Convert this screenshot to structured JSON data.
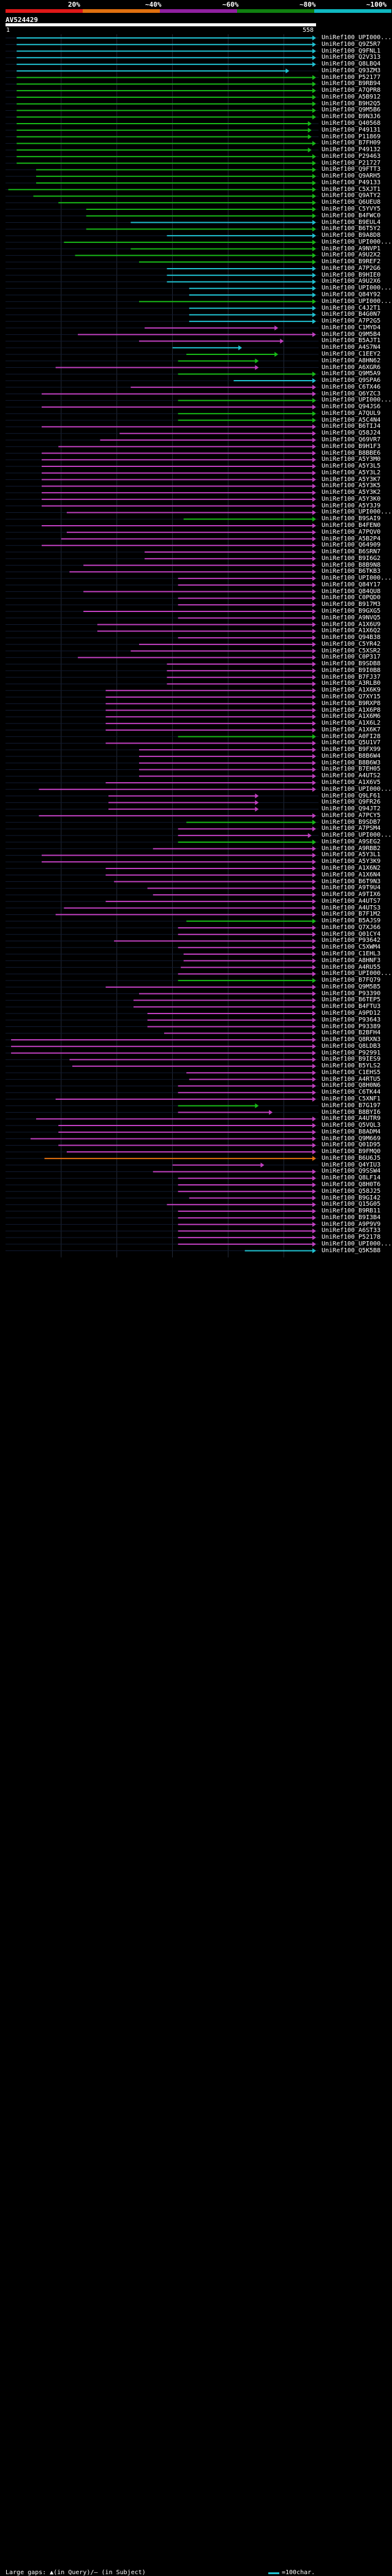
{
  "scale": {
    "labels": [
      {
        "text": "20%",
        "at": 0.2
      },
      {
        "text": "~40%",
        "at": 0.4
      },
      {
        "text": "~60%",
        "at": 0.6
      },
      {
        "text": "~80%",
        "at": 0.8
      },
      {
        "text": "~100%",
        "at": 1.0
      }
    ],
    "bands": [
      {
        "color": "#e01818"
      },
      {
        "color": "#e07010"
      },
      {
        "color": "#9020a0"
      },
      {
        "color": "#108010"
      },
      {
        "color": "#10b8c0"
      }
    ]
  },
  "query": {
    "name": "AV524429",
    "start": "1",
    "end": "558",
    "length": 558
  },
  "colors": {
    "cyan": "#20c0d0",
    "green": "#18b818",
    "magenta": "#c040c0",
    "orange": "#e07010",
    "dim": "#405070"
  },
  "hits": [
    {
      "label": "UniRef100_UPI000...",
      "s": 20,
      "e": 558,
      "c": "cyan"
    },
    {
      "label": "UniRef100_Q9Z5R7",
      "s": 20,
      "e": 558,
      "c": "cyan"
    },
    {
      "label": "UniRef100_Q9FNL1",
      "s": 20,
      "e": 558,
      "c": "cyan"
    },
    {
      "label": "UniRef100_Q2V313",
      "s": 20,
      "e": 558,
      "c": "cyan"
    },
    {
      "label": "UniRef100_Q8LBQ4",
      "s": 20,
      "e": 558,
      "c": "cyan"
    },
    {
      "label": "UniRef100_Q93ZM3",
      "s": 20,
      "e": 510,
      "c": "cyan"
    },
    {
      "label": "UniRef100_P52177",
      "s": 20,
      "e": 558,
      "c": "green"
    },
    {
      "label": "UniRef100_B9RB94",
      "s": 20,
      "e": 558,
      "c": "green"
    },
    {
      "label": "UniRef100_A7QPR8",
      "s": 20,
      "e": 558,
      "c": "green"
    },
    {
      "label": "UniRef100_A5B912",
      "s": 20,
      "e": 558,
      "c": "green"
    },
    {
      "label": "UniRef100_B9H2Q5",
      "s": 20,
      "e": 558,
      "c": "green"
    },
    {
      "label": "UniRef100_Q9M5B6",
      "s": 20,
      "e": 558,
      "c": "green"
    },
    {
      "label": "UniRef100_B9N3J6",
      "s": 20,
      "e": 558,
      "c": "green"
    },
    {
      "label": "UniRef100_Q40568",
      "s": 20,
      "e": 550,
      "c": "green"
    },
    {
      "label": "UniRef100_P49131",
      "s": 20,
      "e": 550,
      "c": "green"
    },
    {
      "label": "UniRef100_P11869",
      "s": 20,
      "e": 550,
      "c": "green"
    },
    {
      "label": "UniRef100_B7FH09",
      "s": 20,
      "e": 558,
      "c": "green"
    },
    {
      "label": "UniRef100_P49132",
      "s": 20,
      "e": 550,
      "c": "green"
    },
    {
      "label": "UniRef100_P29463",
      "s": 20,
      "e": 558,
      "c": "green"
    },
    {
      "label": "UniRef100_P21727",
      "s": 20,
      "e": 558,
      "c": "green"
    },
    {
      "label": "UniRef100_Q9FTT3",
      "s": 55,
      "e": 558,
      "c": "green"
    },
    {
      "label": "UniRef100_Q9ARH5",
      "s": 55,
      "e": 558,
      "c": "green"
    },
    {
      "label": "UniRef100_P49133",
      "s": 55,
      "e": 558,
      "c": "green"
    },
    {
      "label": "UniRef100_C5XJT1",
      "s": 5,
      "e": 558,
      "c": "green"
    },
    {
      "label": "UniRef100_Q9ATY2",
      "s": 50,
      "e": 558,
      "c": "green"
    },
    {
      "label": "UniRef100_Q6UEU8",
      "s": 95,
      "e": 558,
      "c": "green"
    },
    {
      "label": "UniRef100_C5YVY5",
      "s": 145,
      "e": 558,
      "c": "green"
    },
    {
      "label": "UniRef100_B4FWC0",
      "s": 145,
      "e": 558,
      "c": "green"
    },
    {
      "label": "UniRef100_B9EUL4",
      "s": 225,
      "e": 558,
      "c": "cyan"
    },
    {
      "label": "UniRef100_B6T5Y2",
      "s": 145,
      "e": 558,
      "c": "green"
    },
    {
      "label": "UniRef100_B9A8D8",
      "s": 290,
      "e": 558,
      "c": "cyan"
    },
    {
      "label": "UniRef100_UPI000...",
      "s": 105,
      "e": 558,
      "c": "green"
    },
    {
      "label": "UniRef100_A9NVP1",
      "s": 225,
      "e": 558,
      "c": "green"
    },
    {
      "label": "UniRef100_A9U2X2",
      "s": 125,
      "e": 558,
      "c": "green"
    },
    {
      "label": "UniRef100_B9REF2",
      "s": 240,
      "e": 558,
      "c": "green"
    },
    {
      "label": "UniRef100_A7P2G6",
      "s": 290,
      "e": 558,
      "c": "cyan"
    },
    {
      "label": "UniRef100_B9HIE0",
      "s": 290,
      "e": 558,
      "c": "cyan"
    },
    {
      "label": "UniRef100_A9U2X6",
      "s": 290,
      "e": 558,
      "c": "cyan"
    },
    {
      "label": "UniRef100_UPI000...",
      "s": 330,
      "e": 558,
      "c": "cyan"
    },
    {
      "label": "UniRef100_Q84Y92",
      "s": 330,
      "e": 558,
      "c": "cyan"
    },
    {
      "label": "UniRef100_UPI000...",
      "s": 240,
      "e": 558,
      "c": "green"
    },
    {
      "label": "UniRef100_C4J2T1",
      "s": 330,
      "e": 558,
      "c": "cyan"
    },
    {
      "label": "UniRef100_B4G0N7",
      "s": 330,
      "e": 558,
      "c": "cyan"
    },
    {
      "label": "UniRef100_A7P2G5",
      "s": 330,
      "e": 558,
      "c": "cyan"
    },
    {
      "label": "UniRef100_C1MYD4",
      "s": 250,
      "e": 490,
      "c": "magenta"
    },
    {
      "label": "UniRef100_Q9M5B4",
      "s": 130,
      "e": 558,
      "c": "magenta"
    },
    {
      "label": "UniRef100_B5AJT1",
      "s": 240,
      "e": 500,
      "c": "magenta"
    },
    {
      "label": "UniRef100_A4S7N4",
      "s": 300,
      "e": 425,
      "c": "cyan"
    },
    {
      "label": "UniRef100_C1EEY2",
      "s": 325,
      "e": 490,
      "c": "green"
    },
    {
      "label": "UniRef100_A8HN62",
      "s": 310,
      "e": 455,
      "c": "green"
    },
    {
      "label": "UniRef100_A6XGR6",
      "s": 90,
      "e": 455,
      "c": "magenta"
    },
    {
      "label": "UniRef100_Q9M5A9",
      "s": 310,
      "e": 558,
      "c": "green"
    },
    {
      "label": "UniRef100_Q9SPA6",
      "s": 410,
      "e": 558,
      "c": "cyan"
    },
    {
      "label": "UniRef100_C6TX46",
      "s": 225,
      "e": 558,
      "c": "magenta"
    },
    {
      "label": "UniRef100_Q6YZC3",
      "s": 65,
      "e": 558,
      "c": "magenta"
    },
    {
      "label": "UniRef100_UPI000...",
      "s": 310,
      "e": 558,
      "c": "green"
    },
    {
      "label": "UniRef100_Q94JS6",
      "s": 65,
      "e": 558,
      "c": "magenta"
    },
    {
      "label": "UniRef100_A7QUL9",
      "s": 310,
      "e": 558,
      "c": "green"
    },
    {
      "label": "UniRef100_A5C4N4",
      "s": 310,
      "e": 558,
      "c": "green"
    },
    {
      "label": "UniRef100_B6TIJ4",
      "s": 65,
      "e": 558,
      "c": "magenta"
    },
    {
      "label": "UniRef100_Q58J24",
      "s": 205,
      "e": 558,
      "c": "magenta"
    },
    {
      "label": "UniRef100_Q69VR7",
      "s": 170,
      "e": 558,
      "c": "magenta"
    },
    {
      "label": "UniRef100_B9H1F3",
      "s": 95,
      "e": 558,
      "c": "magenta"
    },
    {
      "label": "UniRef100_B8BBE6",
      "s": 65,
      "e": 558,
      "c": "magenta"
    },
    {
      "label": "UniRef100_A5Y3M0",
      "s": 65,
      "e": 558,
      "c": "magenta"
    },
    {
      "label": "UniRef100_A5Y3L5",
      "s": 65,
      "e": 558,
      "c": "magenta"
    },
    {
      "label": "UniRef100_A5Y3L2",
      "s": 65,
      "e": 558,
      "c": "magenta"
    },
    {
      "label": "UniRef100_A5Y3K7",
      "s": 65,
      "e": 558,
      "c": "magenta"
    },
    {
      "label": "UniRef100_A5Y3K5",
      "s": 65,
      "e": 558,
      "c": "magenta"
    },
    {
      "label": "UniRef100_A5Y3K2",
      "s": 65,
      "e": 558,
      "c": "magenta"
    },
    {
      "label": "UniRef100_A5Y3K0",
      "s": 65,
      "e": 558,
      "c": "magenta"
    },
    {
      "label": "UniRef100_A5Y3J9",
      "s": 65,
      "e": 558,
      "c": "magenta"
    },
    {
      "label": "UniRef100_UPI000...",
      "s": 110,
      "e": 558,
      "c": "magenta"
    },
    {
      "label": "UniRef100_B9SAI9",
      "s": 320,
      "e": 558,
      "c": "green"
    },
    {
      "label": "UniRef100_B4FEN0",
      "s": 65,
      "e": 558,
      "c": "magenta"
    },
    {
      "label": "UniRef100_A7PQV0",
      "s": 110,
      "e": 558,
      "c": "magenta"
    },
    {
      "label": "UniRef100_A5B2P4",
      "s": 100,
      "e": 558,
      "c": "magenta"
    },
    {
      "label": "UniRef100_Q64909",
      "s": 65,
      "e": 558,
      "c": "magenta"
    },
    {
      "label": "UniRef100_B6SRN7",
      "s": 250,
      "e": 558,
      "c": "magenta"
    },
    {
      "label": "UniRef100_B9I6G2",
      "s": 250,
      "e": 558,
      "c": "magenta"
    },
    {
      "label": "UniRef100_B8B9N8",
      "s": 140,
      "e": 558,
      "c": "magenta"
    },
    {
      "label": "UniRef100_B6TKB3",
      "s": 115,
      "e": 558,
      "c": "magenta"
    },
    {
      "label": "UniRef100_UPI000...",
      "s": 310,
      "e": 558,
      "c": "magenta"
    },
    {
      "label": "UniRef100_Q84Y17",
      "s": 310,
      "e": 558,
      "c": "magenta"
    },
    {
      "label": "UniRef100_Q84QU8",
      "s": 140,
      "e": 558,
      "c": "magenta"
    },
    {
      "label": "UniRef100_C0PQD0",
      "s": 310,
      "e": 558,
      "c": "magenta"
    },
    {
      "label": "UniRef100_B917M3",
      "s": 310,
      "e": 558,
      "c": "magenta"
    },
    {
      "label": "UniRef100_B9GXG5",
      "s": 140,
      "e": 558,
      "c": "magenta"
    },
    {
      "label": "UniRef100_A9NVQ5",
      "s": 310,
      "e": 558,
      "c": "magenta"
    },
    {
      "label": "UniRef100_A1X6U9",
      "s": 165,
      "e": 558,
      "c": "magenta"
    },
    {
      "label": "UniRef100_A1X6Q2",
      "s": 165,
      "e": 558,
      "c": "magenta"
    },
    {
      "label": "UniRef100_Q94B38",
      "s": 310,
      "e": 558,
      "c": "magenta"
    },
    {
      "label": "UniRef100_C5YR42",
      "s": 240,
      "e": 558,
      "c": "magenta"
    },
    {
      "label": "UniRef100_C5XSR2",
      "s": 225,
      "e": 558,
      "c": "magenta"
    },
    {
      "label": "UniRef100_C0P317",
      "s": 130,
      "e": 558,
      "c": "magenta"
    },
    {
      "label": "UniRef100_B9SDB8",
      "s": 290,
      "e": 558,
      "c": "magenta"
    },
    {
      "label": "UniRef100_B9I0B8",
      "s": 290,
      "e": 558,
      "c": "magenta"
    },
    {
      "label": "UniRef100_B7FJ37",
      "s": 290,
      "e": 558,
      "c": "magenta"
    },
    {
      "label": "UniRef100_A3RLB0",
      "s": 290,
      "e": 558,
      "c": "magenta"
    },
    {
      "label": "UniRef100_A1X6K9",
      "s": 180,
      "e": 558,
      "c": "magenta"
    },
    {
      "label": "UniRef100_Q7XY15",
      "s": 180,
      "e": 558,
      "c": "magenta"
    },
    {
      "label": "UniRef100_B9RXP8",
      "s": 180,
      "e": 558,
      "c": "magenta"
    },
    {
      "label": "UniRef100_A1X6P8",
      "s": 180,
      "e": 558,
      "c": "magenta"
    },
    {
      "label": "UniRef100_A1X6M6",
      "s": 180,
      "e": 558,
      "c": "magenta"
    },
    {
      "label": "UniRef100_A1X6L2",
      "s": 180,
      "e": 558,
      "c": "magenta"
    },
    {
      "label": "UniRef100_A1X6K7",
      "s": 180,
      "e": 558,
      "c": "magenta"
    },
    {
      "label": "UniRef100_A0FI28",
      "s": 310,
      "e": 558,
      "c": "green"
    },
    {
      "label": "UniRef100_Q5U1V7",
      "s": 180,
      "e": 558,
      "c": "magenta"
    },
    {
      "label": "UniRef100_B9FX99",
      "s": 240,
      "e": 558,
      "c": "magenta"
    },
    {
      "label": "UniRef100_B8B6W4",
      "s": 240,
      "e": 558,
      "c": "magenta"
    },
    {
      "label": "UniRef100_B8B6W3",
      "s": 240,
      "e": 558,
      "c": "magenta"
    },
    {
      "label": "UniRef100_B7EH05",
      "s": 240,
      "e": 558,
      "c": "magenta"
    },
    {
      "label": "UniRef100_A4UTS2",
      "s": 240,
      "e": 558,
      "c": "magenta"
    },
    {
      "label": "UniRef100_A1X6V5",
      "s": 180,
      "e": 558,
      "c": "magenta"
    },
    {
      "label": "UniRef100_UPI000...",
      "s": 60,
      "e": 558,
      "c": "magenta"
    },
    {
      "label": "UniRef100_Q9LF61",
      "s": 185,
      "e": 455,
      "c": "magenta"
    },
    {
      "label": "UniRef100_Q9FR26",
      "s": 185,
      "e": 455,
      "c": "magenta"
    },
    {
      "label": "UniRef100_Q94JT2",
      "s": 185,
      "e": 455,
      "c": "magenta"
    },
    {
      "label": "UniRef100_A7PCY5",
      "s": 60,
      "e": 558,
      "c": "magenta"
    },
    {
      "label": "UniRef100_B9SDB7",
      "s": 325,
      "e": 558,
      "c": "green"
    },
    {
      "label": "UniRef100_A7PSM4",
      "s": 310,
      "e": 558,
      "c": "magenta"
    },
    {
      "label": "UniRef100_UPI000...",
      "s": 310,
      "e": 550,
      "c": "magenta"
    },
    {
      "label": "UniRef100_A9SEG2",
      "s": 310,
      "e": 558,
      "c": "green"
    },
    {
      "label": "UniRef100_A9RBB2",
      "s": 265,
      "e": 558,
      "c": "magenta"
    },
    {
      "label": "UniRef100_A5Y3L1",
      "s": 65,
      "e": 558,
      "c": "magenta"
    },
    {
      "label": "UniRef100_A5Y3K9",
      "s": 65,
      "e": 558,
      "c": "magenta"
    },
    {
      "label": "UniRef100_A1X6N2",
      "s": 180,
      "e": 558,
      "c": "magenta"
    },
    {
      "label": "UniRef100_A1X6N4",
      "s": 180,
      "e": 558,
      "c": "magenta"
    },
    {
      "label": "UniRef100_B6T9N3",
      "s": 195,
      "e": 558,
      "c": "magenta"
    },
    {
      "label": "UniRef100_A9T9U4",
      "s": 255,
      "e": 558,
      "c": "magenta"
    },
    {
      "label": "UniRef100_A9TIX6",
      "s": 265,
      "e": 558,
      "c": "magenta"
    },
    {
      "label": "UniRef100_A4UTS7",
      "s": 180,
      "e": 558,
      "c": "magenta"
    },
    {
      "label": "UniRef100_A4UTS3",
      "s": 105,
      "e": 558,
      "c": "magenta"
    },
    {
      "label": "UniRef100_B7F1M2",
      "s": 90,
      "e": 558,
      "c": "magenta"
    },
    {
      "label": "UniRef100_B5AJS9",
      "s": 325,
      "e": 558,
      "c": "green"
    },
    {
      "label": "UniRef100_Q7XJ66",
      "s": 310,
      "e": 558,
      "c": "magenta"
    },
    {
      "label": "UniRef100_Q01CY4",
      "s": 310,
      "e": 558,
      "c": "magenta"
    },
    {
      "label": "UniRef100_P93642",
      "s": 195,
      "e": 558,
      "c": "magenta"
    },
    {
      "label": "UniRef100_C5XWM4",
      "s": 310,
      "e": 558,
      "c": "magenta"
    },
    {
      "label": "UniRef100_C1EHL3",
      "s": 320,
      "e": 558,
      "c": "magenta"
    },
    {
      "label": "UniRef100_A8HNF3",
      "s": 320,
      "e": 558,
      "c": "magenta"
    },
    {
      "label": "UniRef100_A4RU55",
      "s": 315,
      "e": 558,
      "c": "magenta"
    },
    {
      "label": "UniRef100_UPI000...",
      "s": 310,
      "e": 558,
      "c": "magenta"
    },
    {
      "label": "UniRef100_B7FQ79",
      "s": 310,
      "e": 558,
      "c": "green"
    },
    {
      "label": "UniRef100_Q9M5B5",
      "s": 180,
      "e": 558,
      "c": "magenta"
    },
    {
      "label": "UniRef100_P93390",
      "s": 240,
      "e": 558,
      "c": "magenta"
    },
    {
      "label": "UniRef100_B6TEP5",
      "s": 230,
      "e": 558,
      "c": "magenta"
    },
    {
      "label": "UniRef100_B4FTU3",
      "s": 230,
      "e": 558,
      "c": "magenta"
    },
    {
      "label": "UniRef100_A9PD12",
      "s": 255,
      "e": 558,
      "c": "magenta"
    },
    {
      "label": "UniRef100_P93643",
      "s": 255,
      "e": 558,
      "c": "magenta"
    },
    {
      "label": "UniRef100_P93389",
      "s": 255,
      "e": 558,
      "c": "magenta"
    },
    {
      "label": "UniRef100_B2BFH4",
      "s": 285,
      "e": 558,
      "c": "magenta"
    },
    {
      "label": "UniRef100_Q8RXN3",
      "s": 10,
      "e": 558,
      "c": "magenta"
    },
    {
      "label": "UniRef100_Q8LDB3",
      "s": 10,
      "e": 558,
      "c": "magenta"
    },
    {
      "label": "UniRef100_P92991",
      "s": 10,
      "e": 558,
      "c": "magenta"
    },
    {
      "label": "UniRef100_B9IES9",
      "s": 115,
      "e": 558,
      "c": "magenta"
    },
    {
      "label": "UniRef100_B5YLS2",
      "s": 120,
      "e": 558,
      "c": "magenta"
    },
    {
      "label": "UniRef100_C1EHS5",
      "s": 325,
      "e": 558,
      "c": "magenta"
    },
    {
      "label": "UniRef100_A4RTU5",
      "s": 330,
      "e": 558,
      "c": "magenta"
    },
    {
      "label": "UniRef100_Q8H0N6",
      "s": 310,
      "e": 558,
      "c": "magenta"
    },
    {
      "label": "UniRef100_C6TK44",
      "s": 310,
      "e": 558,
      "c": "magenta"
    },
    {
      "label": "UniRef100_C5XNF1",
      "s": 90,
      "e": 558,
      "c": "magenta"
    },
    {
      "label": "UniRef100_B7G197",
      "s": 310,
      "e": 455,
      "c": "green"
    },
    {
      "label": "UniRef100_B8BYI6",
      "s": 310,
      "e": 480,
      "c": "magenta"
    },
    {
      "label": "UniRef100_A4UTR9",
      "s": 55,
      "e": 558,
      "c": "magenta"
    },
    {
      "label": "UniRef100_Q5VQL3",
      "s": 95,
      "e": 558,
      "c": "magenta"
    },
    {
      "label": "UniRef100_B8ADM4",
      "s": 95,
      "e": 558,
      "c": "magenta"
    },
    {
      "label": "UniRef100_Q9M669",
      "s": 45,
      "e": 558,
      "c": "magenta"
    },
    {
      "label": "UniRef100_Q01D95",
      "s": 95,
      "e": 558,
      "c": "magenta"
    },
    {
      "label": "UniRef100_B9FMQ0",
      "s": 110,
      "e": 558,
      "c": "magenta"
    },
    {
      "label": "UniRef100_B6U6J5",
      "s": 70,
      "e": 558,
      "c": "orange"
    },
    {
      "label": "UniRef100_Q4YIU3",
      "s": 300,
      "e": 465,
      "c": "magenta"
    },
    {
      "label": "UniRef100_Q9SSW4",
      "s": 265,
      "e": 558,
      "c": "magenta"
    },
    {
      "label": "UniRef100_Q8LF14",
      "s": 310,
      "e": 558,
      "c": "magenta"
    },
    {
      "label": "UniRef100_Q8H0T6",
      "s": 310,
      "e": 558,
      "c": "magenta"
    },
    {
      "label": "UniRef100_Q58J25",
      "s": 310,
      "e": 558,
      "c": "magenta"
    },
    {
      "label": "UniRef100_B9GI42",
      "s": 330,
      "e": 558,
      "c": "magenta"
    },
    {
      "label": "UniRef100_Q15G05",
      "s": 290,
      "e": 558,
      "c": "magenta"
    },
    {
      "label": "UniRef100_B9RB11",
      "s": 310,
      "e": 558,
      "c": "magenta"
    },
    {
      "label": "UniRef100_B9I3B4",
      "s": 310,
      "e": 558,
      "c": "magenta"
    },
    {
      "label": "UniRef100_A9P9V9",
      "s": 310,
      "e": 558,
      "c": "magenta"
    },
    {
      "label": "UniRef100_A6ST33",
      "s": 310,
      "e": 558,
      "c": "magenta"
    },
    {
      "label": "UniRef100_P52178",
      "s": 310,
      "e": 558,
      "c": "magenta"
    },
    {
      "label": "UniRef100_UPI000...",
      "s": 310,
      "e": 558,
      "c": "magenta"
    },
    {
      "label": "UniRef100_Q5K5B8",
      "s": 430,
      "e": 558,
      "c": "cyan"
    }
  ],
  "footer": {
    "legend_text": "Large gaps: ▲(in Query)/— (in Subject)",
    "scale_text": "=100char."
  }
}
